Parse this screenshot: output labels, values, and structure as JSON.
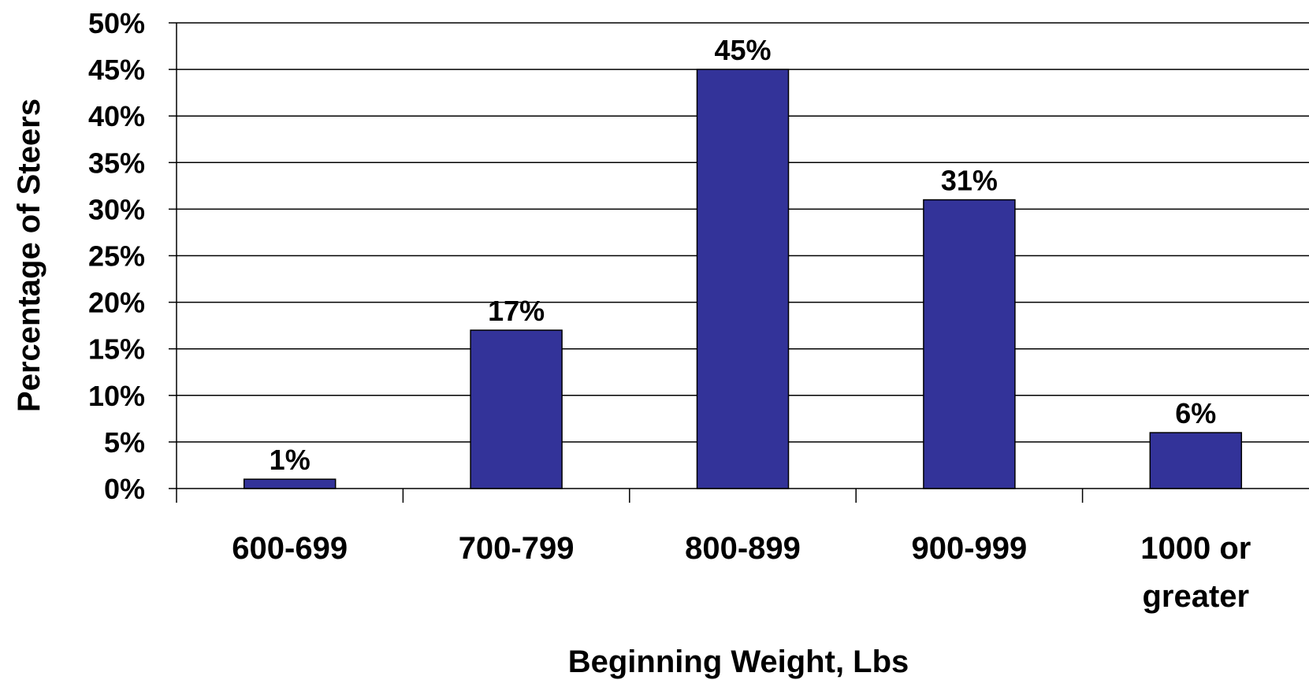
{
  "chart_data": {
    "type": "bar",
    "categories": [
      [
        "600-699"
      ],
      [
        "700-799"
      ],
      [
        "800-899"
      ],
      [
        "900-999"
      ],
      [
        "1000 or",
        "greater"
      ]
    ],
    "values": [
      1,
      17,
      45,
      31,
      6
    ],
    "data_labels": [
      "1%",
      "17%",
      "45%",
      "31%",
      "6%"
    ],
    "title": "",
    "xlabel": "Beginning Weight, Lbs",
    "ylabel": "Percentage of Steers",
    "ylim": [
      0,
      50
    ],
    "yticks": [
      0,
      5,
      10,
      15,
      20,
      25,
      30,
      35,
      40,
      45,
      50
    ],
    "ytick_labels": [
      "0%",
      "5%",
      "10%",
      "15%",
      "20%",
      "25%",
      "30%",
      "35%",
      "40%",
      "45%",
      "50%"
    ],
    "grid": "horizontal",
    "legend": "none",
    "bar_color": "#333399"
  }
}
